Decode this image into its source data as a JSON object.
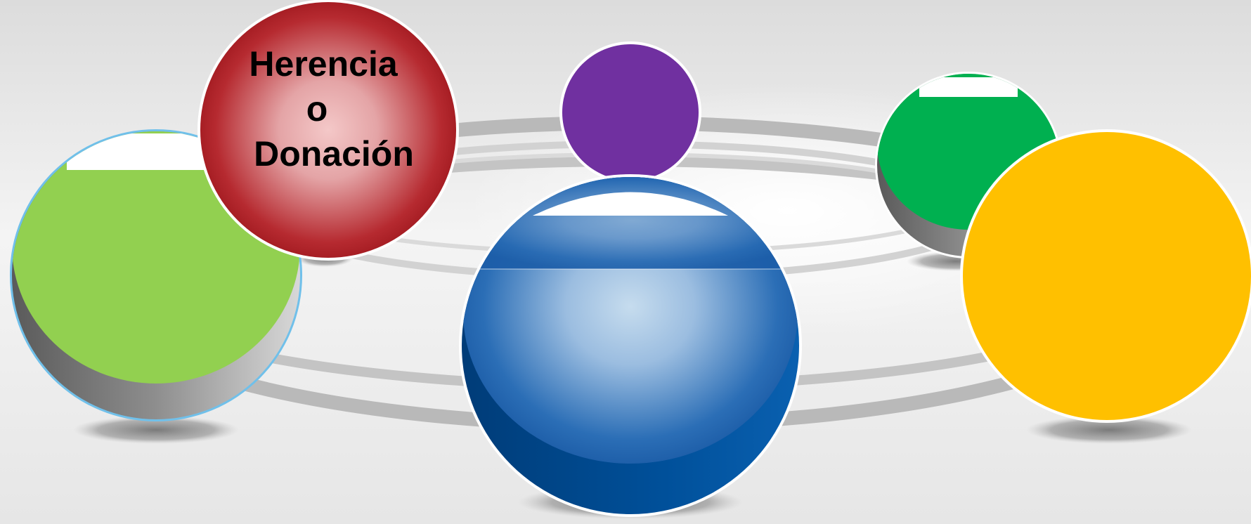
{
  "diagram": {
    "nodes": [
      {
        "id": "green-sphere",
        "label": "",
        "color": "#92d050"
      },
      {
        "id": "red-sphere",
        "label_lines": [
          "Herencia",
          "o",
          "Donación"
        ],
        "color": "#c0262c"
      },
      {
        "id": "purple-sphere",
        "label": "",
        "color": "#7030a0"
      },
      {
        "id": "blue-sphere",
        "label": "",
        "color": "#1f5fa8"
      },
      {
        "id": "dark-green-sphere",
        "label": "",
        "color": "#00b050"
      },
      {
        "id": "yellow-sphere",
        "label": "",
        "color": "#ffc000"
      }
    ]
  }
}
